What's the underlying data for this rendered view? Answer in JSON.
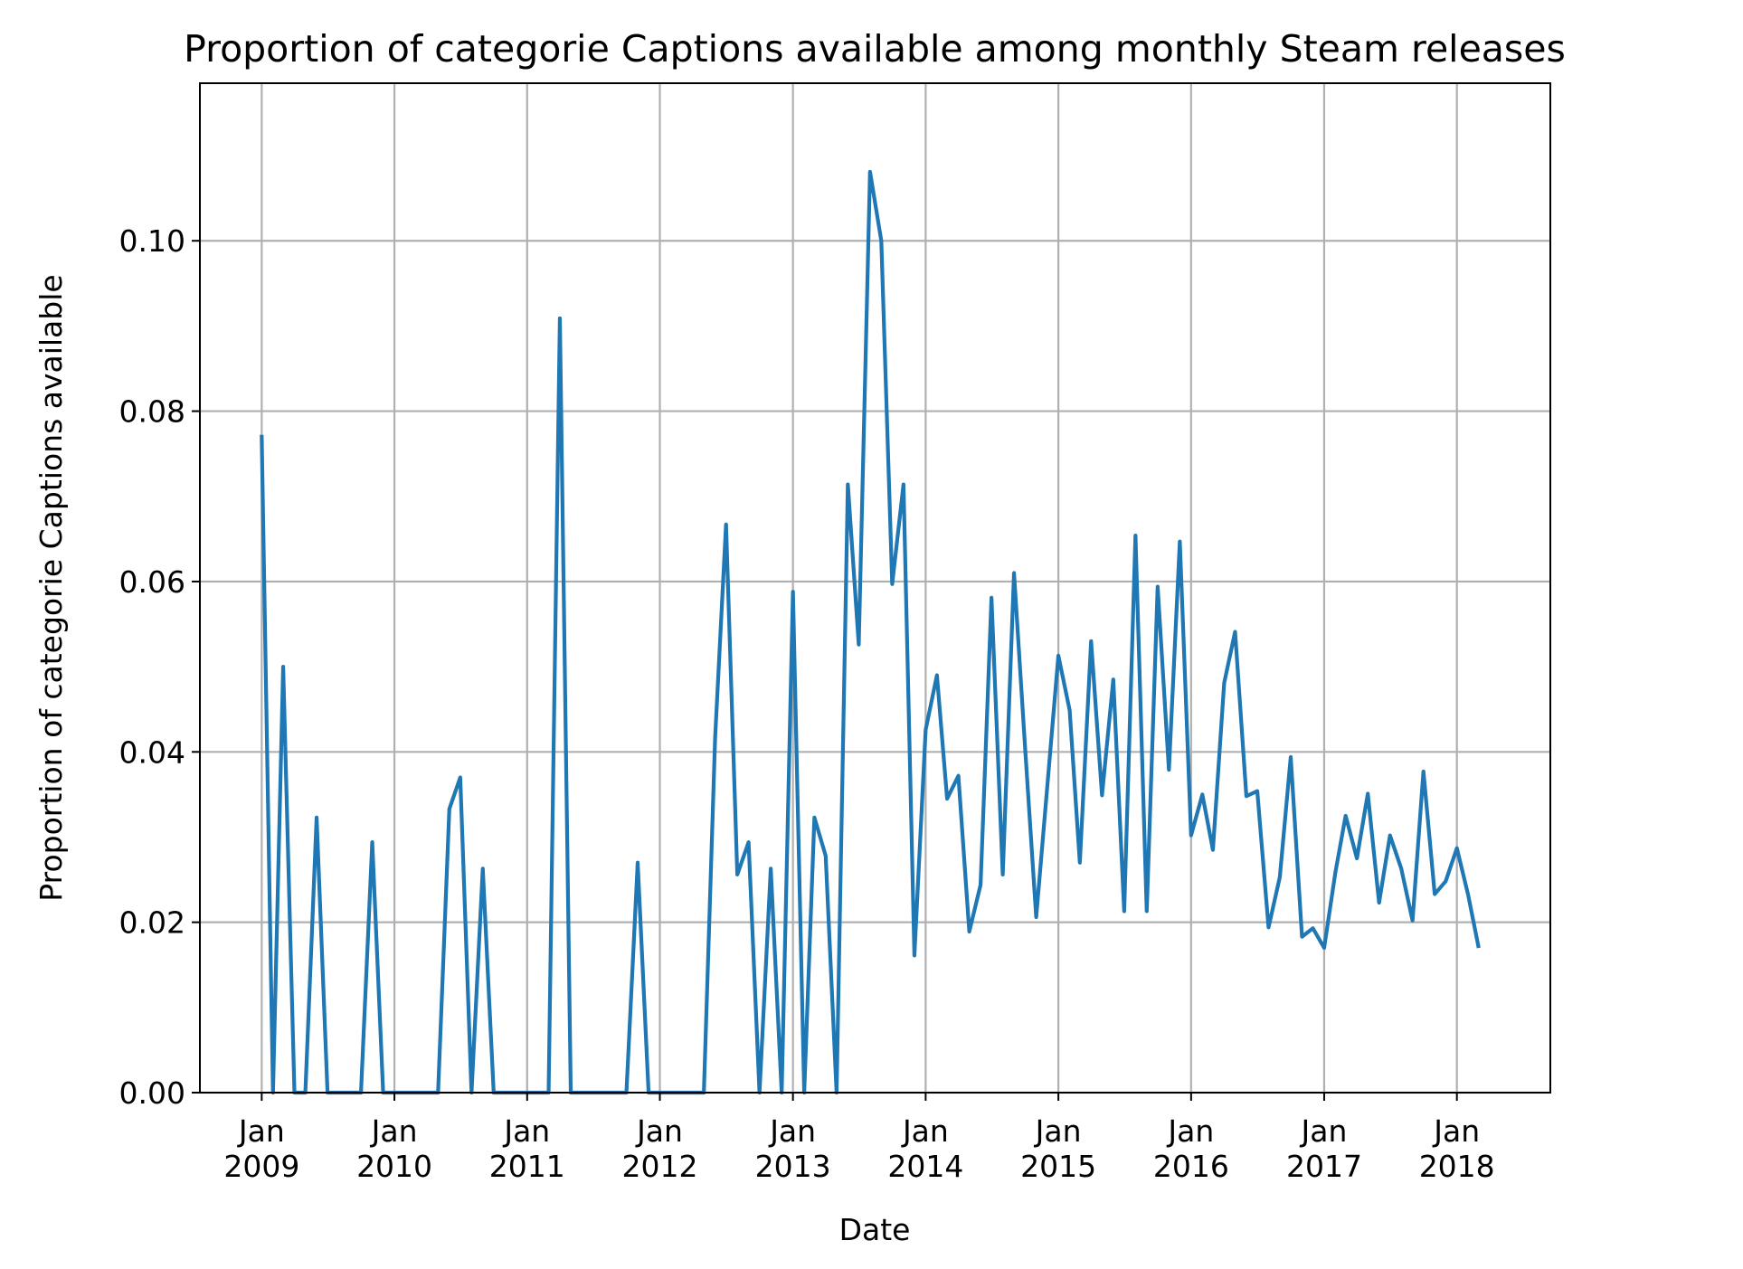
{
  "chart_data": {
    "type": "line",
    "title": "Proportion of categorie Captions available among monthly Steam releases",
    "xlabel": "Date",
    "ylabel": "Proportion of categorie Captions available",
    "grid": true,
    "line_color": "#1f77b4",
    "ylim": [
      0,
      0.1185
    ],
    "xlim": [
      "2008-07-15",
      "2018-09-15"
    ],
    "yticks": [
      0.0,
      0.02,
      0.04,
      0.06,
      0.08,
      0.1
    ],
    "ytick_labels": [
      "0.00",
      "0.02",
      "0.04",
      "0.06",
      "0.08",
      "0.10"
    ],
    "xticks": [
      {
        "date": "2009-01-01",
        "month": "Jan",
        "year": "2009"
      },
      {
        "date": "2010-01-01",
        "month": "Jan",
        "year": "2010"
      },
      {
        "date": "2011-01-01",
        "month": "Jan",
        "year": "2011"
      },
      {
        "date": "2012-01-01",
        "month": "Jan",
        "year": "2012"
      },
      {
        "date": "2013-01-01",
        "month": "Jan",
        "year": "2013"
      },
      {
        "date": "2014-01-01",
        "month": "Jan",
        "year": "2014"
      },
      {
        "date": "2015-01-01",
        "month": "Jan",
        "year": "2015"
      },
      {
        "date": "2016-01-01",
        "month": "Jan",
        "year": "2016"
      },
      {
        "date": "2017-01-01",
        "month": "Jan",
        "year": "2017"
      },
      {
        "date": "2018-01-01",
        "month": "Jan",
        "year": "2018"
      }
    ],
    "x": [
      "2009-01",
      "2009-02",
      "2009-03",
      "2009-04",
      "2009-05",
      "2009-06",
      "2009-07",
      "2009-08",
      "2009-09",
      "2009-10",
      "2009-11",
      "2009-12",
      "2010-01",
      "2010-02",
      "2010-03",
      "2010-04",
      "2010-05",
      "2010-06",
      "2010-07",
      "2010-08",
      "2010-09",
      "2010-10",
      "2010-11",
      "2010-12",
      "2011-01",
      "2011-02",
      "2011-03",
      "2011-04",
      "2011-05",
      "2011-06",
      "2011-07",
      "2011-08",
      "2011-09",
      "2011-10",
      "2011-11",
      "2011-12",
      "2012-01",
      "2012-02",
      "2012-03",
      "2012-04",
      "2012-05",
      "2012-06",
      "2012-07",
      "2012-08",
      "2012-09",
      "2012-10",
      "2012-11",
      "2012-12",
      "2013-01",
      "2013-02",
      "2013-03",
      "2013-04",
      "2013-05",
      "2013-06",
      "2013-07",
      "2013-08",
      "2013-09",
      "2013-10",
      "2013-11",
      "2013-12",
      "2014-01",
      "2014-02",
      "2014-03",
      "2014-04",
      "2014-05",
      "2014-06",
      "2014-07",
      "2014-08",
      "2014-09",
      "2014-10",
      "2014-11",
      "2014-12",
      "2015-01",
      "2015-02",
      "2015-03",
      "2015-04",
      "2015-05",
      "2015-06",
      "2015-07",
      "2015-08",
      "2015-09",
      "2015-10",
      "2015-11",
      "2015-12",
      "2016-01",
      "2016-02",
      "2016-03",
      "2016-04",
      "2016-05",
      "2016-06",
      "2016-07",
      "2016-08",
      "2016-09",
      "2016-10",
      "2016-11",
      "2016-12",
      "2017-01",
      "2017-02",
      "2017-03",
      "2017-04",
      "2017-05",
      "2017-06",
      "2017-07",
      "2017-08",
      "2017-09",
      "2017-10",
      "2017-11",
      "2017-12",
      "2018-01",
      "2018-02",
      "2018-03"
    ],
    "series": [
      {
        "values": [
          0.077,
          0.0,
          0.05,
          0.0,
          0.0,
          0.0323,
          0.0,
          0.0,
          0.0,
          0.0,
          0.0294,
          0.0,
          0.0,
          0.0,
          0.0,
          0.0,
          0.0,
          0.0333,
          0.037,
          0.0,
          0.0263,
          0.0,
          0.0,
          0.0,
          0.0,
          0.0,
          0.0,
          0.0909,
          0.0,
          0.0,
          0.0,
          0.0,
          0.0,
          0.0,
          0.027,
          0.0,
          0.0,
          0.0,
          0.0,
          0.0,
          0.0,
          0.0417,
          0.0667,
          0.0256,
          0.0294,
          0.0,
          0.0263,
          0.0,
          0.0588,
          0.0,
          0.0323,
          0.0278,
          0.0,
          0.0714,
          0.0526,
          0.1081,
          0.1,
          0.0597,
          0.0714,
          0.0161,
          0.0426,
          0.049,
          0.0345,
          0.0372,
          0.0189,
          0.0244,
          0.0581,
          0.0256,
          0.061,
          0.0408,
          0.0206,
          0.0357,
          0.0513,
          0.0449,
          0.027,
          0.053,
          0.0349,
          0.0485,
          0.0213,
          0.0654,
          0.0213,
          0.0594,
          0.0379,
          0.0647,
          0.0302,
          0.035,
          0.0285,
          0.0481,
          0.0541,
          0.0348,
          0.0354,
          0.0194,
          0.0253,
          0.0394,
          0.0183,
          0.0193,
          0.017,
          0.0259,
          0.0325,
          0.0275,
          0.0351,
          0.0223,
          0.0302,
          0.0263,
          0.0202,
          0.0377,
          0.0233,
          0.0248,
          0.0287,
          0.0232,
          0.0172
        ]
      }
    ]
  }
}
